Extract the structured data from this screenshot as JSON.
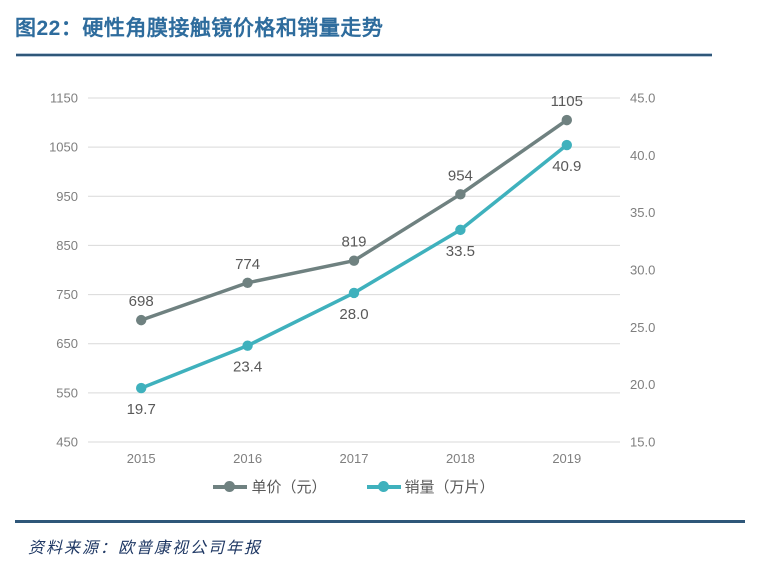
{
  "header": {
    "title": "图22：硬性角膜接触镜价格和销量走势"
  },
  "footer": {
    "source": "资料来源：欧普康视公司年报"
  },
  "chart_data": {
    "type": "line",
    "title": "硬性角膜接触镜价格和销量走势",
    "categories": [
      "2015",
      "2016",
      "2017",
      "2018",
      "2019"
    ],
    "series": [
      {
        "name": "单价（元）",
        "axis": "left",
        "color": "#6F8180",
        "values": [
          698,
          774,
          819,
          954,
          1105
        ],
        "labels": [
          "698",
          "774",
          "819",
          "954",
          "1105"
        ],
        "label_position": "above"
      },
      {
        "name": "销量（万片）",
        "axis": "right",
        "color": "#3FB1BD",
        "values": [
          19.7,
          23.4,
          28.0,
          33.5,
          40.9
        ],
        "labels": [
          "19.7",
          "23.4",
          "28.0",
          "33.5",
          "40.9"
        ],
        "label_position": "below"
      }
    ],
    "left_axis": {
      "min": 450,
      "max": 1150,
      "step": 100,
      "tick_labels": [
        "1150",
        "1050",
        "950",
        "850",
        "750",
        "650",
        "550",
        "450"
      ]
    },
    "right_axis": {
      "min": 15,
      "max": 45,
      "step": 5,
      "tick_labels": [
        "45.0",
        "40.0",
        "35.0",
        "30.0",
        "25.0",
        "20.0",
        "15.0"
      ]
    },
    "grid": true,
    "legend_position": "bottom",
    "colors": {
      "grid": "#D9D9D9",
      "tick_label": "#7F7F7F",
      "data_label": "#595959"
    }
  }
}
